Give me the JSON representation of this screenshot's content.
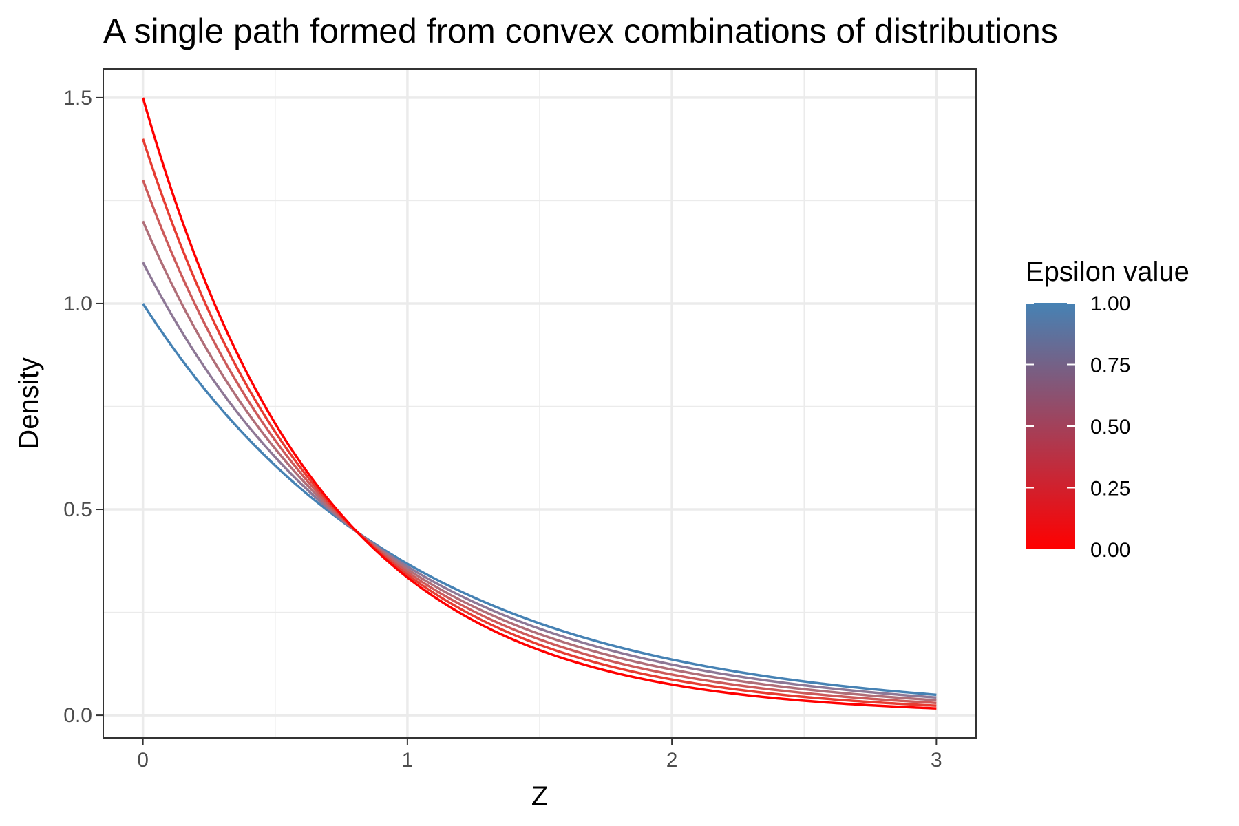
{
  "chart_data": {
    "type": "line",
    "title": "A single path formed from convex combinations of distributions",
    "xlabel": "Z",
    "ylabel": "Density",
    "xlim": [
      -0.15,
      3.15
    ],
    "ylim": [
      -0.055,
      1.57
    ],
    "x_ticks": [
      0,
      1,
      2,
      3
    ],
    "x_tick_labels": [
      "0",
      "1",
      "2",
      "3"
    ],
    "y_ticks": [
      0.0,
      0.5,
      1.0,
      1.5
    ],
    "y_tick_labels": [
      "0.0",
      "0.5",
      "1.0",
      "1.5"
    ],
    "x_minor_ticks": [
      0.5,
      1.5,
      2.5
    ],
    "y_minor_ticks": [
      0.25,
      0.75,
      1.25
    ],
    "grid": true,
    "x_range": [
      0,
      3
    ],
    "legend": {
      "title": "Epsilon value",
      "type": "colorbar",
      "position": "right",
      "breaks": [
        0,
        0.25,
        0.5,
        0.75,
        1
      ],
      "labels": [
        "0.00",
        "0.25",
        "0.50",
        "0.75",
        "1.00"
      ],
      "low_color": "#ff0000",
      "high_color": "#4682b4"
    },
    "series": [
      {
        "epsilon": 0.0,
        "color": "#ff0000",
        "values_at_x": {
          "0": 1.5,
          "1": 0.335,
          "2": 0.075,
          "3": 0.017
        }
      },
      {
        "epsilon": 0.2,
        "color": "#e63c32",
        "values_at_x": {
          "0": 1.4,
          "1": 0.342,
          "2": 0.087,
          "3": 0.023
        }
      },
      {
        "epsilon": 0.4,
        "color": "#cc5a5a",
        "values_at_x": {
          "0": 1.3,
          "1": 0.349,
          "2": 0.099,
          "3": 0.03
        }
      },
      {
        "epsilon": 0.6,
        "color": "#b06e78",
        "values_at_x": {
          "0": 1.2,
          "1": 0.356,
          "2": 0.111,
          "3": 0.036
        }
      },
      {
        "epsilon": 0.8,
        "color": "#8e7896",
        "values_at_x": {
          "0": 1.1,
          "1": 0.363,
          "2": 0.123,
          "3": 0.043
        }
      },
      {
        "epsilon": 1.0,
        "color": "#4682b4",
        "values_at_x": {
          "0": 1.0,
          "1": 0.368,
          "2": 0.135,
          "3": 0.05
        }
      }
    ]
  }
}
